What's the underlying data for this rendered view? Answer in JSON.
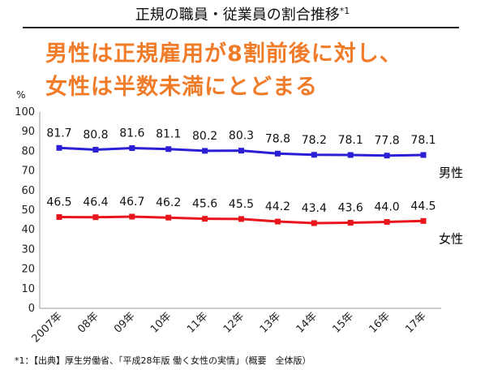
{
  "header": {
    "title": "正規の職員・従業員の割合推移",
    "title_note": "*1"
  },
  "headline": {
    "line1": "男性は正規雇用が8割前後に対し、",
    "line2": "女性は半数未満にとどまる"
  },
  "footnote": "*1：【出典】厚生労働省、「平成28年版 働く女性の実情」（概要　全体版）",
  "colors": {
    "male": "#2b1fd6",
    "female": "#e8161c",
    "headline": "#f07c2a"
  },
  "chart_data": {
    "type": "line",
    "title": "正規の職員・従業員の割合推移",
    "ylabel": "%",
    "xlabel": "",
    "ylim": [
      0,
      100
    ],
    "yticks": [
      0,
      10,
      20,
      30,
      40,
      50,
      60,
      70,
      80,
      90,
      100
    ],
    "categories": [
      "2007年",
      "08年",
      "09年",
      "10年",
      "11年",
      "12年",
      "13年",
      "14年",
      "15年",
      "16年",
      "17年"
    ],
    "series": [
      {
        "name": "男性",
        "values": [
          81.7,
          80.8,
          81.6,
          81.1,
          80.2,
          80.3,
          78.8,
          78.2,
          78.1,
          77.8,
          78.1
        ]
      },
      {
        "name": "女性",
        "values": [
          46.5,
          46.4,
          46.7,
          46.2,
          45.6,
          45.5,
          44.2,
          43.4,
          43.6,
          44.0,
          44.5
        ]
      }
    ],
    "grid": false,
    "legend": "right"
  }
}
